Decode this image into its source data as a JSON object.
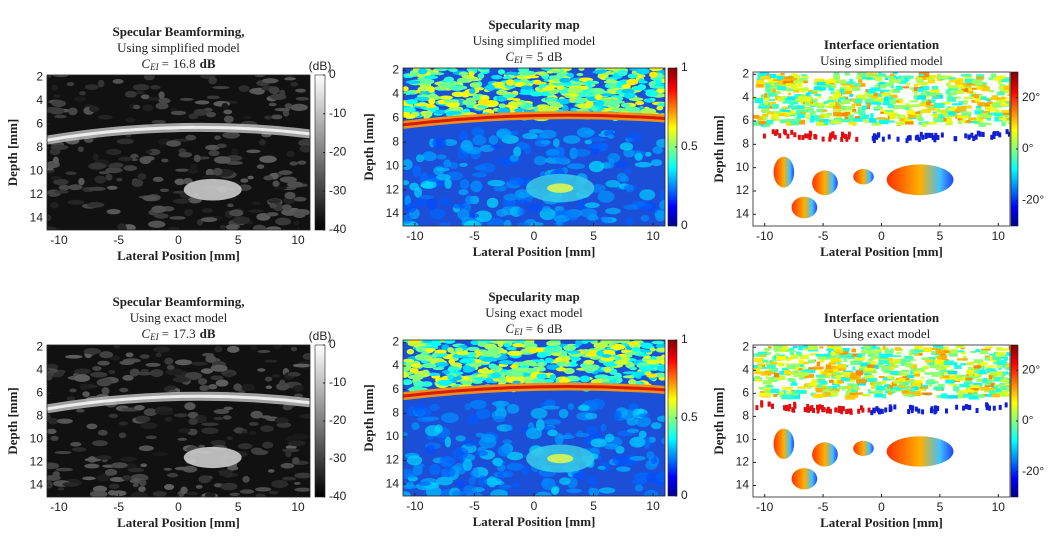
{
  "chart_data": [
    {
      "type": "heatmap",
      "title": [
        "Specular Beamforming,",
        "Using simplified model"
      ],
      "metric": {
        "symbol": "C",
        "subscript": "EI",
        "relation": "=",
        "value": 16.8,
        "unit": "dB"
      },
      "xlabel": "Lateral Position [mm]",
      "ylabel": "Depth [mm]",
      "xlim": [
        -11,
        11
      ],
      "ylim": [
        1.8,
        15
      ],
      "y_reversed": true,
      "xticks": [
        -10,
        -5,
        0,
        5,
        10
      ],
      "yticks": [
        2,
        4,
        6,
        8,
        10,
        12,
        14
      ],
      "colormap": "gray",
      "colorbar": {
        "label": "(dB)",
        "lim": [
          -40,
          0
        ],
        "ticks": [
          0,
          -10,
          -20,
          -30,
          -40
        ]
      }
    },
    {
      "type": "heatmap",
      "title": [
        "Specularity map",
        "Using simplified model"
      ],
      "metric": {
        "symbol": "C",
        "subscript": "EI",
        "relation": "=",
        "value": 5,
        "unit": "dB"
      },
      "xlabel": "Lateral Position [mm]",
      "ylabel": "Depth [mm]",
      "xlim": [
        -11,
        11
      ],
      "ylim": [
        1.8,
        15
      ],
      "y_reversed": true,
      "xticks": [
        -10,
        -5,
        0,
        5,
        10
      ],
      "yticks": [
        2,
        4,
        6,
        8,
        10,
        12,
        14
      ],
      "colormap": "jet",
      "colorbar": {
        "lim": [
          0,
          1
        ],
        "ticks": [
          0,
          0.5,
          1
        ]
      }
    },
    {
      "type": "heatmap",
      "title": [
        "Interface orientation",
        "Using simplified model"
      ],
      "xlabel": "Lateral Position [mm]",
      "ylabel": "Depth [mm]",
      "xlim": [
        -11,
        11
      ],
      "ylim": [
        1.8,
        15
      ],
      "y_reversed": true,
      "xticks": [
        -10,
        -5,
        0,
        5,
        10
      ],
      "yticks": [
        2,
        4,
        6,
        8,
        10,
        12,
        14
      ],
      "colormap": "orientation",
      "colorbar": {
        "lim": [
          -30,
          30
        ],
        "ticks": [
          {
            "value": 20,
            "label": "20°"
          },
          {
            "value": 0,
            "label": "0°"
          },
          {
            "value": -20,
            "label": "-20°"
          }
        ]
      }
    },
    {
      "type": "heatmap",
      "title": [
        "Specular Beamforming,",
        "Using exact model"
      ],
      "metric": {
        "symbol": "C",
        "subscript": "EI",
        "relation": "=",
        "value": 17.3,
        "unit": "dB"
      },
      "xlabel": "Lateral Position [mm]",
      "ylabel": "Depth [mm]",
      "xlim": [
        -11,
        11
      ],
      "ylim": [
        1.8,
        15
      ],
      "y_reversed": true,
      "xticks": [
        -10,
        -5,
        0,
        5,
        10
      ],
      "yticks": [
        2,
        4,
        6,
        8,
        10,
        12,
        14
      ],
      "colormap": "gray",
      "colorbar": {
        "label": "(dB)",
        "lim": [
          -40,
          0
        ],
        "ticks": [
          0,
          -10,
          -20,
          -30,
          -40
        ]
      }
    },
    {
      "type": "heatmap",
      "title": [
        "Specularity map",
        "Using exact model"
      ],
      "metric": {
        "symbol": "C",
        "subscript": "EI",
        "relation": "=",
        "value": 6,
        "unit": "dB"
      },
      "xlabel": "Lateral Position [mm]",
      "ylabel": "Depth [mm]",
      "xlim": [
        -11,
        11
      ],
      "ylim": [
        1.8,
        15
      ],
      "y_reversed": true,
      "xticks": [
        -10,
        -5,
        0,
        5,
        10
      ],
      "yticks": [
        2,
        4,
        6,
        8,
        10,
        12,
        14
      ],
      "colormap": "jet",
      "colorbar": {
        "lim": [
          0,
          1
        ],
        "ticks": [
          0,
          0.5,
          1
        ]
      }
    },
    {
      "type": "heatmap",
      "title": [
        "Interface orientation",
        "Using exact model"
      ],
      "xlabel": "Lateral Position [mm]",
      "ylabel": "Depth [mm]",
      "xlim": [
        -11,
        11
      ],
      "ylim": [
        1.8,
        15
      ],
      "y_reversed": true,
      "xticks": [
        -10,
        -5,
        0,
        5,
        10
      ],
      "yticks": [
        2,
        4,
        6,
        8,
        10,
        12,
        14
      ],
      "colormap": "orientation",
      "colorbar": {
        "lim": [
          -30,
          30
        ],
        "ticks": [
          {
            "value": 20,
            "label": "20°"
          },
          {
            "value": 0,
            "label": "0°"
          },
          {
            "value": -20,
            "label": "-20°"
          }
        ]
      }
    }
  ]
}
